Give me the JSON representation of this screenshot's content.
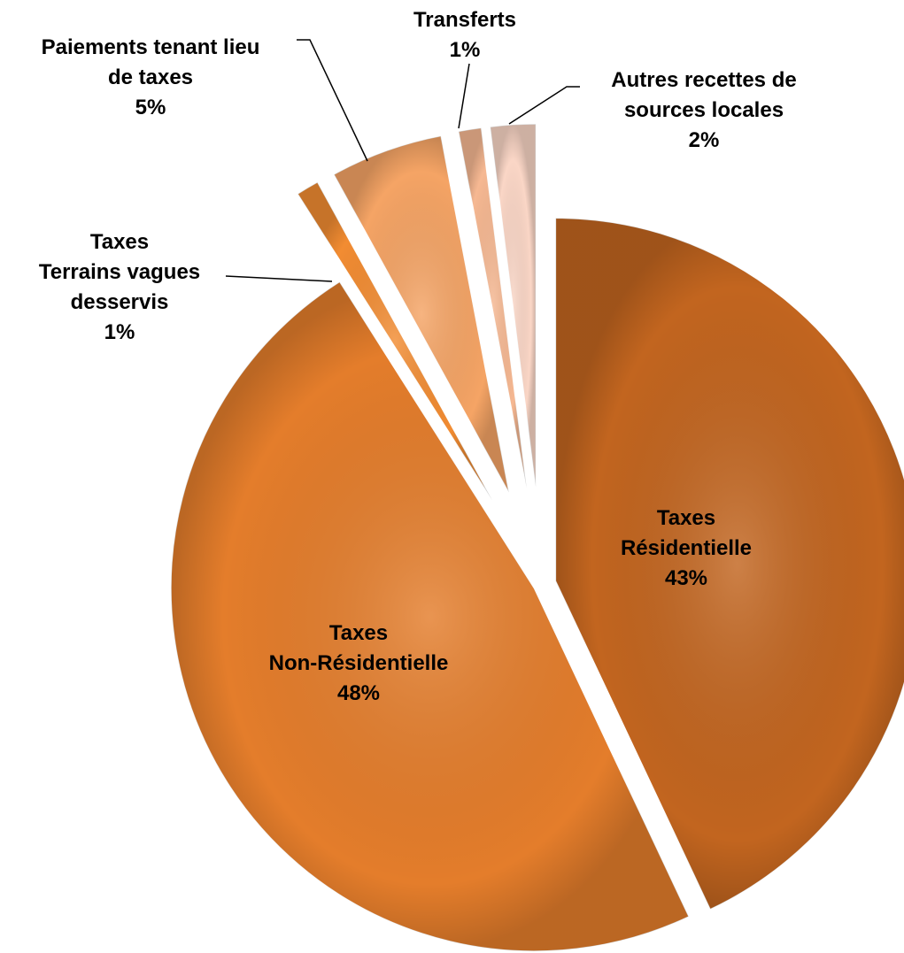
{
  "chart_data": {
    "type": "pie",
    "categories": [
      "Taxes\nRésidentielle",
      "Taxes\nNon-Résidentielle",
      "Taxes\nTerrains vagues\ndesservis",
      "Paiements tenant lieu\nde taxes",
      "Transferts",
      "Autres recettes de\nsources locales"
    ],
    "values": [
      43,
      48,
      1,
      5,
      1,
      2
    ],
    "value_labels": [
      "43%",
      "48%",
      "1%",
      "5%",
      "1%",
      "2%"
    ],
    "colors": [
      "#c2651f",
      "#e47d2b",
      "#f28c32",
      "#f5a465",
      "#f6b892",
      "#fad6c6"
    ]
  }
}
